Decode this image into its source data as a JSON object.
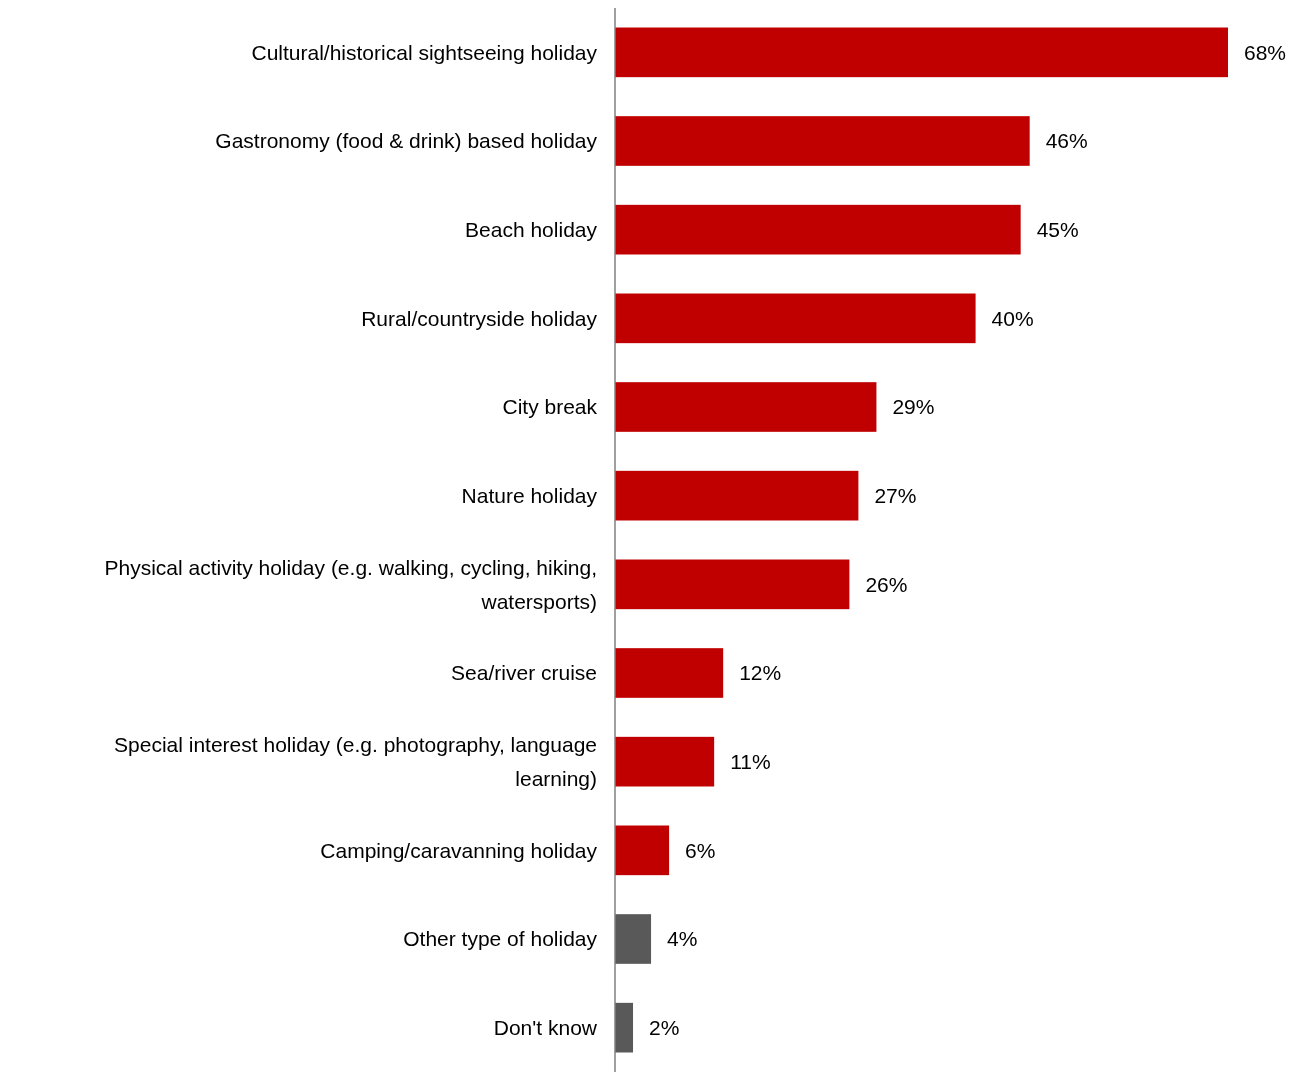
{
  "chart_data": {
    "type": "bar",
    "orientation": "horizontal",
    "data_labels": true,
    "categories": [
      "Cultural/historical sightseeing holiday",
      "Gastronomy (food & drink) based holiday",
      "Beach holiday",
      "Rural/countryside holiday",
      "City break",
      "Nature holiday",
      "Physical activity holiday (e.g. walking, cycling, hiking, watersports)",
      "Sea/river cruise",
      "Special interest holiday (e.g. photography, language learning)",
      "Camping/caravanning holiday",
      "Other type of holiday",
      "Don't know"
    ],
    "values": [
      68,
      46,
      45,
      40,
      29,
      27,
      26,
      12,
      11,
      6,
      4,
      2
    ],
    "colors": [
      "#c00000",
      "#c00000",
      "#c00000",
      "#c00000",
      "#c00000",
      "#c00000",
      "#c00000",
      "#c00000",
      "#c00000",
      "#c00000",
      "#595959",
      "#595959"
    ],
    "value_labels": [
      "68%",
      "46%",
      "45%",
      "40%",
      "29%",
      "27%",
      "26%",
      "12%",
      "11%",
      "6%",
      "4%",
      "2%"
    ]
  }
}
